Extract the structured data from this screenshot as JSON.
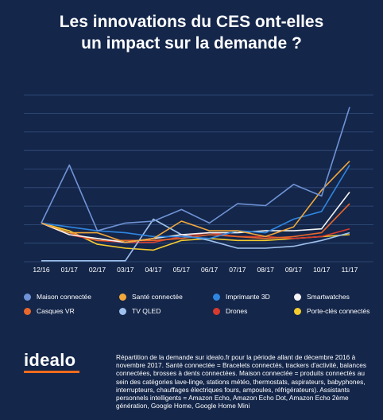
{
  "title": {
    "line1": "Les innovations du CES ont-elles",
    "line2": "un impact sur la demande ?"
  },
  "chart_data": {
    "type": "line",
    "x": [
      "12/16",
      "01/17",
      "02/17",
      "03/17",
      "04/17",
      "05/17",
      "06/17",
      "07/17",
      "08/17",
      "09/17",
      "10/17",
      "11/17"
    ],
    "ylim": [
      0,
      10
    ],
    "grid": true,
    "legend_position": "bottom",
    "series": [
      {
        "name": "Maison connectée",
        "color": "#6f93d6",
        "values": [
          2.0,
          5.0,
          1.6,
          2.0,
          2.1,
          2.7,
          2.0,
          3.0,
          2.9,
          4.0,
          3.4,
          8.0
        ]
      },
      {
        "name": "Santé connectée",
        "color": "#f2a83b",
        "values": [
          2.0,
          1.5,
          1.5,
          1.0,
          1.2,
          2.1,
          1.6,
          1.6,
          1.3,
          1.8,
          3.7,
          5.2
        ]
      },
      {
        "name": "Imprimante 3D",
        "color": "#2f86e0",
        "values": [
          2.0,
          1.8,
          1.6,
          1.5,
          1.3,
          1.3,
          1.2,
          1.6,
          1.5,
          2.2,
          2.6,
          5.0
        ]
      },
      {
        "name": "Smartwatches",
        "color": "#f4f4f4",
        "values": [
          2.0,
          1.4,
          1.2,
          1.0,
          1.2,
          1.4,
          1.5,
          1.5,
          1.6,
          1.6,
          1.7,
          3.6
        ]
      },
      {
        "name": "Casques VR",
        "color": "#e8672a",
        "values": [
          2.0,
          1.5,
          1.1,
          1.1,
          1.1,
          1.2,
          1.4,
          1.3,
          1.2,
          1.3,
          1.5,
          3.0
        ]
      },
      {
        "name": "TV QLED",
        "color": "#9ec0ec",
        "values": [
          0.05,
          0.05,
          0.05,
          0.05,
          2.2,
          1.4,
          1.1,
          0.7,
          0.7,
          0.8,
          1.1,
          1.5
        ]
      },
      {
        "name": "Drones",
        "color": "#d73a2e",
        "values": [
          2.0,
          1.4,
          1.1,
          1.0,
          1.0,
          1.3,
          1.5,
          1.3,
          1.3,
          1.2,
          1.3,
          1.7
        ]
      },
      {
        "name": "Porte-clés connectés",
        "color": "#f5cc2e",
        "values": [
          2.0,
          1.6,
          0.9,
          0.7,
          0.6,
          1.1,
          1.2,
          1.1,
          1.1,
          1.2,
          1.3,
          1.4
        ]
      }
    ]
  },
  "footer": {
    "logo": "idealo",
    "logo_color": "#f26b1d",
    "note": "Répartition de la demande sur idealo.fr pour la période allant de décembre 2016 à novembre 2017. Santé connectée = Bracelets connectés, trackers d'activité, balances connectées, brosses à dents connectées. Maison connectée = produits connectés au sein des catégories lave-linge, stations météo, thermostats, aspirateurs, babyphones, interrupteurs, chauffages électriques fours, ampoules, réfrigérateurs). Assistants personnels intelligents = Amazon Echo, Amazon Echo Dot, Amazon Echo 2ème génération, Google Home, Google Home Mini"
  }
}
